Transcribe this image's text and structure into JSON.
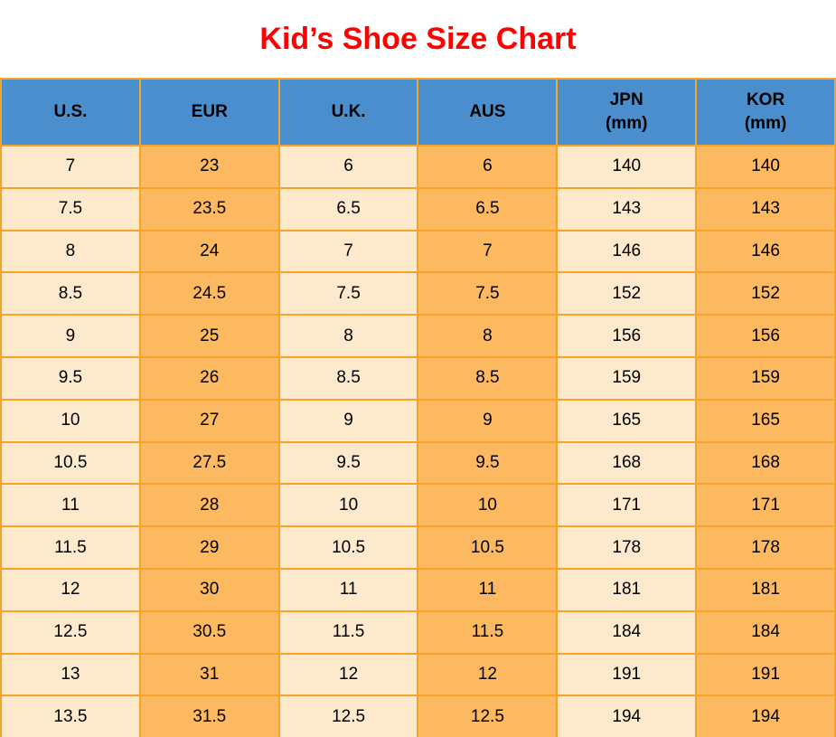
{
  "title": "Kid’s Shoe Size Chart",
  "colors": {
    "title_red": "#FF0000",
    "header_blue": "#4A8ECD",
    "cell_cream": "#FDE9CB",
    "cell_orange": "#FCB95F",
    "grid_orange": "#F7A229",
    "text_black": "#000000",
    "background": "#FFFFFF"
  },
  "table": {
    "columns": [
      {
        "label": "U.S.",
        "sub": ""
      },
      {
        "label": "EUR",
        "sub": ""
      },
      {
        "label": "U.K.",
        "sub": ""
      },
      {
        "label": "AUS",
        "sub": ""
      },
      {
        "label": "JPN",
        "sub": "(mm)"
      },
      {
        "label": "KOR",
        "sub": "(mm)"
      }
    ],
    "rows": [
      [
        "7",
        "23",
        "6",
        "6",
        "140",
        "140"
      ],
      [
        "7.5",
        "23.5",
        "6.5",
        "6.5",
        "143",
        "143"
      ],
      [
        "8",
        "24",
        "7",
        "7",
        "146",
        "146"
      ],
      [
        "8.5",
        "24.5",
        "7.5",
        "7.5",
        "152",
        "152"
      ],
      [
        "9",
        "25",
        "8",
        "8",
        "156",
        "156"
      ],
      [
        "9.5",
        "26",
        "8.5",
        "8.5",
        "159",
        "159"
      ],
      [
        "10",
        "27",
        "9",
        "9",
        "165",
        "165"
      ],
      [
        "10.5",
        "27.5",
        "9.5",
        "9.5",
        "168",
        "168"
      ],
      [
        "11",
        "28",
        "10",
        "10",
        "171",
        "171"
      ],
      [
        "11.5",
        "29",
        "10.5",
        "10.5",
        "178",
        "178"
      ],
      [
        "12",
        "30",
        "11",
        "11",
        "181",
        "181"
      ],
      [
        "12.5",
        "30.5",
        "11.5",
        "11.5",
        "184",
        "184"
      ],
      [
        "13",
        "31",
        "12",
        "12",
        "191",
        "191"
      ],
      [
        "13.5",
        "31.5",
        "12.5",
        "12.5",
        "194",
        "194"
      ]
    ]
  },
  "chart_data": {
    "type": "table",
    "title": "Kid’s Shoe Size Chart",
    "columns": [
      "U.S.",
      "EUR",
      "U.K.",
      "AUS",
      "JPN (mm)",
      "KOR (mm)"
    ],
    "rows": [
      [
        7,
        23,
        6,
        6,
        140,
        140
      ],
      [
        7.5,
        23.5,
        6.5,
        6.5,
        143,
        143
      ],
      [
        8,
        24,
        7,
        7,
        146,
        146
      ],
      [
        8.5,
        24.5,
        7.5,
        7.5,
        152,
        152
      ],
      [
        9,
        25,
        8,
        8,
        156,
        156
      ],
      [
        9.5,
        26,
        8.5,
        8.5,
        159,
        159
      ],
      [
        10,
        27,
        9,
        9,
        165,
        165
      ],
      [
        10.5,
        27.5,
        9.5,
        9.5,
        168,
        168
      ],
      [
        11,
        28,
        10,
        10,
        171,
        171
      ],
      [
        11.5,
        29,
        10.5,
        10.5,
        178,
        178
      ],
      [
        12,
        30,
        11,
        11,
        181,
        181
      ],
      [
        12.5,
        30.5,
        11.5,
        11.5,
        184,
        184
      ],
      [
        13,
        31,
        12,
        12,
        191,
        191
      ],
      [
        13.5,
        31.5,
        12.5,
        12.5,
        194,
        194
      ]
    ],
    "layout_hints": {
      "header_fill": "blue",
      "body_column_fills_alternate": [
        "cream",
        "orange"
      ],
      "grid": "on",
      "grid_color": "orange"
    }
  }
}
